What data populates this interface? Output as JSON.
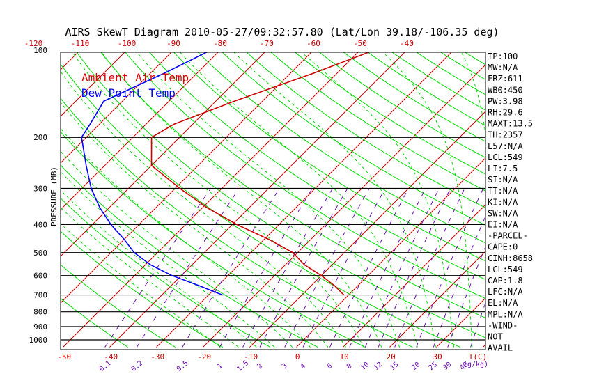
{
  "title": "AIRS SkewT Diagram 2010-05-27/09:32:57.80 (Lat/Lon 39.18/-106.35 deg)",
  "legend": [
    {
      "label": "Ambient Air Temp",
      "color": "#ff0000"
    },
    {
      "label": "Dew Point Temp",
      "color": "#0000ff"
    }
  ],
  "colors": {
    "frame": "#000000",
    "isotherm": "#cc0000",
    "dry_adiabat": "#00dd00",
    "moist_adiabat": "#00dd00",
    "mixing_ratio": "#6a0dad",
    "temp_profile": "#cc0000",
    "dewpoint_profile": "#0000ff",
    "bottom_labels": "#cc0000",
    "mixing_labels": "#6a0dad"
  },
  "indices": [
    "TP:100",
    "MW:N/A",
    "FRZ:611",
    "WB0:450",
    "PW:3.98",
    "RH:29.6",
    "MAXT:13.5",
    "TH:2357",
    "L57:N/A",
    "LCL:549",
    "LI:7.5",
    "SI:N/A",
    "TT:N/A",
    "KI:N/A",
    "SW:N/A",
    "EI:N/A",
    "-PARCEL-",
    "CAPE:0",
    "CINH:8658",
    "LCL:549",
    "CAP:1.8",
    "LFC:N/A",
    "EL:N/A",
    "MPL:N/A",
    "-WIND-",
    "NOT",
    "AVAIL"
  ],
  "chart_data": {
    "type": "line",
    "title": "AIRS SkewT Diagram 2010-05-27/09:32:57.80 (Lat/Lon 39.18/-106.35 deg)",
    "ylabel": "PRESSURE (MB)",
    "xlabel": "T(C)",
    "y_scale": "log",
    "y_reversed": true,
    "pressure_ticks": [
      100,
      200,
      300,
      400,
      500,
      600,
      700,
      800,
      900,
      1000
    ],
    "pressure_range": [
      100,
      1050
    ],
    "top_temp_ticks": [
      -120,
      -110,
      -100,
      -90,
      -80,
      -70,
      -60,
      -50,
      -40
    ],
    "bottom_temp_ticks": [
      -50,
      -40,
      -30,
      -20,
      -10,
      0,
      10,
      20,
      30
    ],
    "bottom_temp_unit": "T(C)",
    "mixing_ratio_labels": [
      "0.1",
      "0.2",
      "0.5",
      "1",
      "1.5",
      "2",
      "3",
      "4",
      "6",
      "8",
      "10",
      "12",
      "15",
      "20",
      "25",
      "30",
      "40"
    ],
    "mixing_ratio_unit": "(g/kg)",
    "isotherm_range": [
      -200,
      50
    ],
    "isotherm_step": 10,
    "grid": true,
    "legend_position": "top-left",
    "series": [
      {
        "name": "Ambient Air Temp",
        "points": [
          {
            "p": 100,
            "t": -47
          },
          {
            "p": 120,
            "t": -55
          },
          {
            "p": 150,
            "t": -66
          },
          {
            "p": 180,
            "t": -74
          },
          {
            "p": 200,
            "t": -76
          },
          {
            "p": 250,
            "t": -70
          },
          {
            "p": 300,
            "t": -59
          },
          {
            "p": 350,
            "t": -49
          },
          {
            "p": 400,
            "t": -39
          },
          {
            "p": 450,
            "t": -29
          },
          {
            "p": 500,
            "t": -21
          },
          {
            "p": 550,
            "t": -16
          },
          {
            "p": 600,
            "t": -10
          },
          {
            "p": 650,
            "t": -5
          },
          {
            "p": 700,
            "t": -1
          }
        ]
      },
      {
        "name": "Dew Point Temp",
        "points": [
          {
            "p": 100,
            "t": -82
          },
          {
            "p": 120,
            "t": -87
          },
          {
            "p": 150,
            "t": -94
          },
          {
            "p": 180,
            "t": -92
          },
          {
            "p": 200,
            "t": -91
          },
          {
            "p": 250,
            "t": -84
          },
          {
            "p": 300,
            "t": -78
          },
          {
            "p": 350,
            "t": -72
          },
          {
            "p": 400,
            "t": -66
          },
          {
            "p": 450,
            "t": -60
          },
          {
            "p": 500,
            "t": -55
          },
          {
            "p": 550,
            "t": -49
          },
          {
            "p": 600,
            "t": -42
          },
          {
            "p": 650,
            "t": -34
          },
          {
            "p": 700,
            "t": -27
          }
        ]
      }
    ]
  }
}
